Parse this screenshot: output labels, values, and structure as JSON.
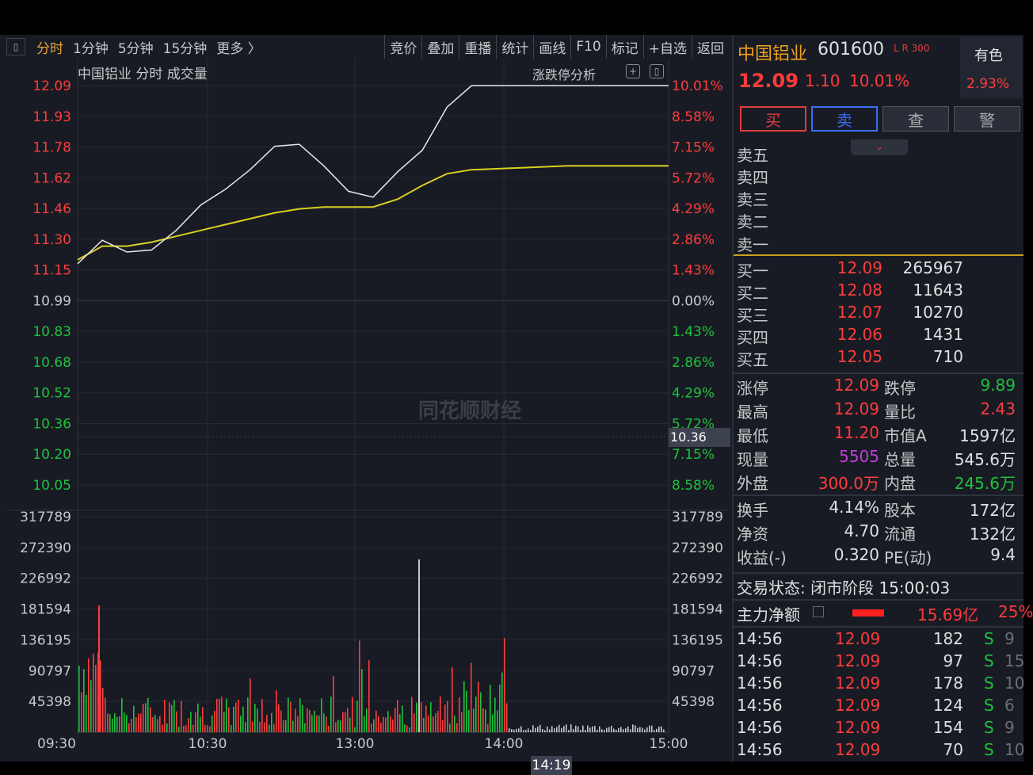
{
  "toolbar": {
    "tabs": [
      "分时",
      "1分钟",
      "5分钟",
      "15分钟",
      "更多 〉"
    ],
    "buttons": [
      "竞价",
      "叠加",
      "重播",
      "统计",
      "画线",
      "F10",
      "标记",
      "+自选",
      "返回"
    ]
  },
  "chart": {
    "title": "中国铝业   分时 成交量",
    "limit_analysis": "涨跌停分析",
    "watermark": "同花顺财经",
    "hover_price": "10.36",
    "hover_time": "14:19",
    "price_labels": [
      "12.09",
      "11.93",
      "11.78",
      "11.62",
      "11.46",
      "11.30",
      "11.15",
      "10.99",
      "10.83",
      "10.68",
      "10.52",
      "10.36",
      "10.20",
      "10.05"
    ],
    "pct_labels": [
      "10.01%",
      "8.58%",
      "7.15%",
      "5.72%",
      "4.29%",
      "2.86%",
      "1.43%",
      "0.00%",
      "1.43%",
      "2.86%",
      "4.29%",
      "5.72%",
      "7.15%",
      "8.58%"
    ],
    "volume_labels": [
      "317789",
      "272390",
      "226992",
      "181594",
      "136195",
      "90797",
      "45398"
    ],
    "time_labels": [
      "09:30",
      "10:30",
      "13:00",
      "14:00",
      "15:00"
    ],
    "colors": {
      "up": "#ff3c3c",
      "down": "#1ec23c",
      "price_line": "#e8e8e8",
      "avg_line": "#d8d020",
      "grid": "#262a34"
    }
  },
  "chart_data": {
    "type": "line",
    "x_label": "",
    "y_label": "",
    "ylim": [
      10.05,
      12.09
    ],
    "prev_close": 10.99,
    "series": [
      {
        "x": [
          "09:30",
          "09:40",
          "09:50",
          "10:00",
          "10:10",
          "10:20",
          "10:30",
          "10:40",
          "10:50",
          "11:00",
          "11:10",
          "11:20",
          "11:30",
          "13:10",
          "13:20",
          "13:30",
          "13:40",
          "14:00",
          "14:19",
          "14:40",
          "15:00"
        ],
        "values": [
          11.18,
          11.3,
          11.24,
          11.25,
          11.35,
          11.48,
          11.56,
          11.66,
          11.78,
          11.79,
          11.68,
          11.55,
          11.52,
          11.65,
          11.76,
          11.98,
          12.09,
          12.09,
          12.09,
          12.09,
          12.09
        ]
      },
      {
        "x": [
          "09:30",
          "09:40",
          "09:50",
          "10:00",
          "10:10",
          "10:20",
          "10:30",
          "10:40",
          "10:50",
          "11:00",
          "11:10",
          "11:20",
          "11:30",
          "13:10",
          "13:20",
          "13:30",
          "13:40",
          "14:00",
          "14:19",
          "14:40",
          "15:00"
        ],
        "values": [
          11.2,
          11.27,
          11.27,
          11.29,
          11.32,
          11.35,
          11.38,
          11.41,
          11.44,
          11.46,
          11.47,
          11.47,
          11.47,
          11.51,
          11.58,
          11.64,
          11.66,
          11.67,
          11.68,
          11.68,
          11.68
        ]
      }
    ]
  },
  "right": {
    "name": "中国铝业",
    "code": "601600",
    "tags": "L R 300",
    "price": "12.09",
    "change": "1.10",
    "pct": "10.01%",
    "sector_name": "有色",
    "sector_pct": "2.93%",
    "actions": {
      "buy": "买",
      "sell": "卖",
      "query": "查",
      "alert": "警"
    },
    "sell_levels": [
      "卖五",
      "卖四",
      "卖三",
      "卖二",
      "卖一"
    ],
    "buy_levels": [
      {
        "label": "买一",
        "price": "12.09",
        "vol": "265967"
      },
      {
        "label": "买二",
        "price": "12.08",
        "vol": "11643"
      },
      {
        "label": "买三",
        "price": "12.07",
        "vol": "10270"
      },
      {
        "label": "买四",
        "price": "12.06",
        "vol": "1431"
      },
      {
        "label": "买五",
        "price": "12.05",
        "vol": "710"
      }
    ],
    "stats": {
      "limit_up_l": "涨停",
      "limit_up": "12.09",
      "limit_down_l": "跌停",
      "limit_down": "9.89",
      "high_l": "最高",
      "high": "12.09",
      "vol_ratio_l": "量比",
      "vol_ratio": "2.43",
      "low_l": "最低",
      "low": "11.20",
      "mcap_l": "市值A",
      "mcap": "1597亿",
      "now_vol_l": "现量",
      "now_vol": "5505",
      "total_vol_l": "总量",
      "total_vol": "545.6万",
      "outer_l": "外盘",
      "outer": "300.0万",
      "inner_l": "内盘",
      "inner": "245.6万",
      "turnover_l": "换手",
      "turnover": "4.14%",
      "shares_l": "股本",
      "shares": "172亿",
      "nav_l": "净资",
      "nav": "4.70",
      "float_l": "流通",
      "float": "132亿",
      "eps_l": "收益(-)",
      "eps": "0.320",
      "pe_l": "PE(动)",
      "pe": "9.4"
    },
    "status": "交易状态: 闭市阶段 15:00:03",
    "mainforce_label": "主力净额",
    "mainforce_value": "15.69亿",
    "mainforce_pct": "25%",
    "trades": [
      {
        "time": "14:56",
        "price": "12.09",
        "qty": "182",
        "side": "S",
        "n": "9"
      },
      {
        "time": "14:56",
        "price": "12.09",
        "qty": "97",
        "side": "S",
        "n": "15"
      },
      {
        "time": "14:56",
        "price": "12.09",
        "qty": "178",
        "side": "S",
        "n": "10"
      },
      {
        "time": "14:56",
        "price": "12.09",
        "qty": "124",
        "side": "S",
        "n": "6"
      },
      {
        "time": "14:56",
        "price": "12.09",
        "qty": "154",
        "side": "S",
        "n": "9"
      },
      {
        "time": "14:56",
        "price": "12.09",
        "qty": "70",
        "side": "S",
        "n": "10"
      }
    ]
  }
}
